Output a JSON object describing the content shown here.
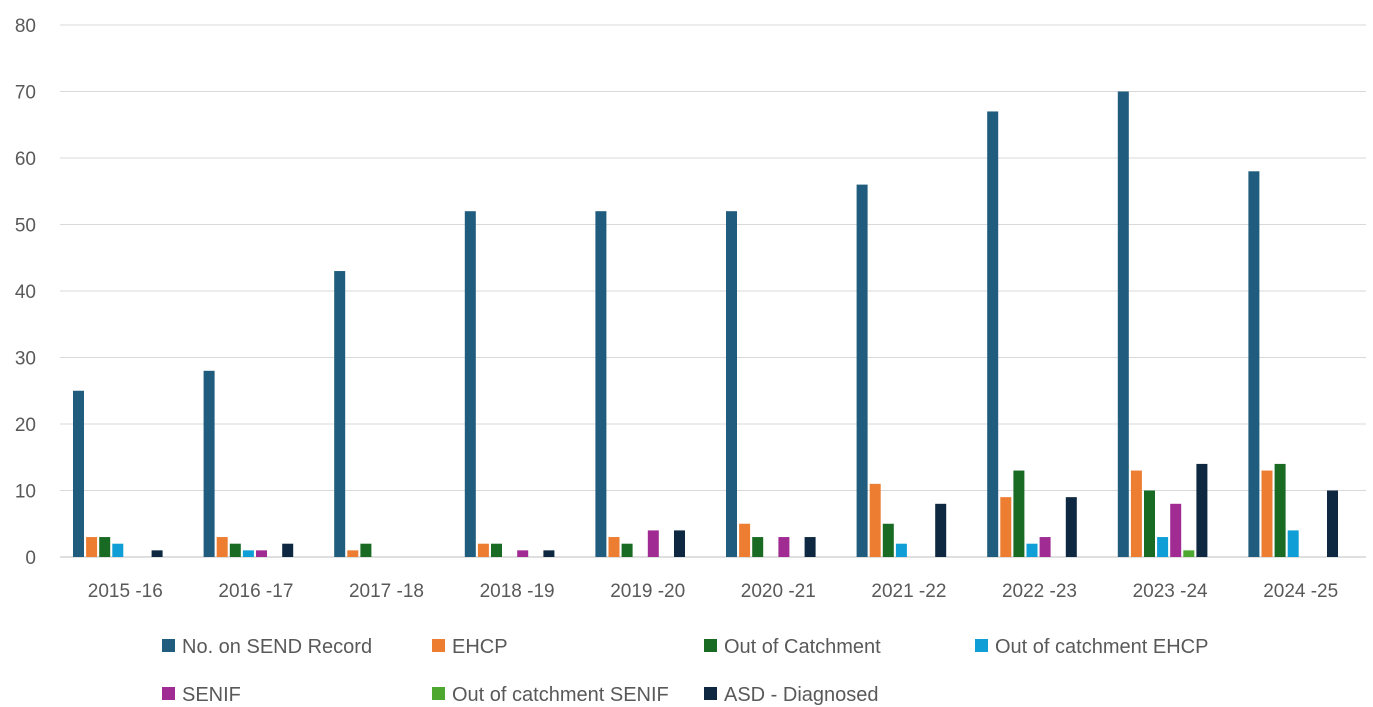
{
  "chart_data": {
    "type": "bar",
    "title": "",
    "xlabel": "",
    "ylabel": "",
    "ylim": [
      0,
      80
    ],
    "yticks": [
      0,
      10,
      20,
      30,
      40,
      50,
      60,
      70,
      80
    ],
    "grid": true,
    "legend_position": "bottom",
    "categories": [
      "2015 -16",
      "2016 -17",
      "2017 -18",
      "2018 -19",
      "2019 -20",
      "2020 -21",
      "2021 -22",
      "2022 -23",
      "2023 -24",
      "2024 -25"
    ],
    "series": [
      {
        "name": "No. on SEND Record",
        "color": "#1F5C7D",
        "values": [
          25,
          28,
          43,
          52,
          52,
          52,
          56,
          67,
          70,
          58
        ]
      },
      {
        "name": "EHCP",
        "color": "#ED7D31",
        "values": [
          3,
          3,
          1,
          2,
          3,
          5,
          11,
          9,
          13,
          13
        ]
      },
      {
        "name": "Out of Catchment",
        "color": "#196B24",
        "values": [
          3,
          2,
          2,
          2,
          2,
          3,
          5,
          13,
          10,
          14
        ]
      },
      {
        "name": "Out of catchment EHCP",
        "color": "#0F9ED5",
        "values": [
          2,
          1,
          0,
          0,
          0,
          0,
          2,
          2,
          3,
          4
        ]
      },
      {
        "name": "SENIF",
        "color": "#A02B93",
        "values": [
          0,
          1,
          0,
          1,
          4,
          3,
          0,
          3,
          8,
          0
        ]
      },
      {
        "name": "Out of catchment SENIF",
        "color": "#4EA72E",
        "values": [
          0,
          0,
          0,
          0,
          0,
          0,
          0,
          0,
          1,
          0
        ]
      },
      {
        "name": "ASD - Diagnosed",
        "color": "#0E2841",
        "values": [
          1,
          2,
          0,
          1,
          4,
          3,
          8,
          9,
          14,
          10
        ]
      }
    ]
  }
}
